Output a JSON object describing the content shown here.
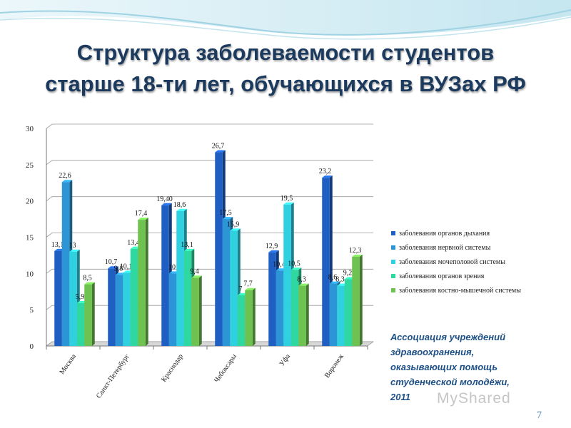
{
  "slide": {
    "title_line1": "Структура заболеваемости студентов",
    "title_line2": "старше 18-ти лет, обучающихся в ВУЗах РФ",
    "credit_lines": [
      "Ассоциация учреждений",
      "здравоохранения,",
      "оказывающих помощь",
      "студенческой молодёжи,",
      "2011"
    ],
    "watermark": "MyShared",
    "page_number": "7"
  },
  "colors": {
    "title": "#1b3a5e",
    "series": [
      "#1f5fc4",
      "#2b95d6",
      "#2fd0e0",
      "#2ed8a0",
      "#6ec24f"
    ]
  },
  "chart_data": {
    "type": "bar",
    "categories": [
      "Москва",
      "Санкт-Петербург",
      "Краснодар",
      "Чебоксары",
      "Уфа",
      "Воронеж"
    ],
    "ylim": [
      0,
      30
    ],
    "yticks": [
      0,
      5,
      10,
      15,
      20,
      25,
      30
    ],
    "series": [
      {
        "name": "заболевания органов дыхания",
        "values": [
          13.1,
          10.7,
          19.4,
          26.7,
          12.9,
          23.2
        ],
        "labels": [
          "13,1",
          "10,7",
          "19,40",
          "26,7",
          "12,9",
          "23,2"
        ]
      },
      {
        "name": "заболевания нервной системы",
        "values": [
          22.6,
          9.8,
          10,
          17.5,
          10.4,
          8.6
        ],
        "labels": [
          "22,6",
          "9,8",
          "10",
          "17,5",
          "10,4",
          "8,6"
        ]
      },
      {
        "name": "заболевания мочеполовой системы",
        "values": [
          13,
          10.1,
          18.6,
          15.9,
          19.5,
          8.3
        ],
        "labels": [
          "13",
          "10,1",
          "18,6",
          "15,9",
          "19,5",
          "8,3"
        ]
      },
      {
        "name": "заболевания органов зрения",
        "values": [
          5.9,
          13.4,
          13.1,
          7,
          10.5,
          9.2
        ],
        "labels": [
          "5,9",
          "13,4",
          "13,1",
          "7",
          "10,5",
          "9,2"
        ]
      },
      {
        "name": "заболевания костно-мышечной системы",
        "values": [
          8.5,
          17.4,
          9.4,
          7.7,
          8.3,
          12.3
        ],
        "labels": [
          "8,5",
          "17,4",
          "9,4",
          "7,7",
          "8,3",
          "12,3"
        ]
      }
    ],
    "legend_position": "right",
    "xlabel": "",
    "ylabel": ""
  }
}
